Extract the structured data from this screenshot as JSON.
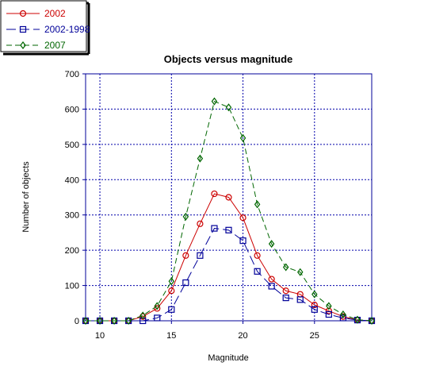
{
  "chart_data": {
    "type": "line",
    "title": "Objects versus magnitude",
    "xlabel": "Magnitude",
    "ylabel": "Number of objects",
    "xlim": [
      9,
      29
    ],
    "ylim": [
      0,
      700
    ],
    "x_ticks": [
      10,
      15,
      20,
      25
    ],
    "y_ticks": [
      0,
      100,
      200,
      300,
      400,
      500,
      600,
      700
    ],
    "grid": true,
    "legend_position": "top-left",
    "x": [
      9,
      10,
      11,
      12,
      13,
      14,
      15,
      16,
      17,
      18,
      19,
      20,
      21,
      22,
      23,
      24,
      25,
      26,
      27,
      28,
      29
    ],
    "series": [
      {
        "name": "2002",
        "color": "#cc0000",
        "marker": "circle",
        "dash": "solid",
        "values": [
          0,
          0,
          0,
          0,
          12,
          35,
          85,
          185,
          275,
          360,
          350,
          292,
          185,
          118,
          85,
          75,
          45,
          28,
          12,
          2,
          0
        ]
      },
      {
        "name": "2002-1998",
        "color": "#000099",
        "marker": "square",
        "dash": "long-dash",
        "values": [
          0,
          0,
          0,
          0,
          0,
          8,
          32,
          108,
          185,
          262,
          257,
          227,
          140,
          98,
          65,
          60,
          32,
          18,
          8,
          2,
          0
        ]
      },
      {
        "name": "2007",
        "color": "#006600",
        "marker": "diamond",
        "dash": "dashed",
        "values": [
          0,
          0,
          0,
          0,
          15,
          42,
          112,
          295,
          460,
          622,
          605,
          518,
          330,
          218,
          152,
          138,
          75,
          42,
          18,
          3,
          0
        ]
      }
    ]
  }
}
